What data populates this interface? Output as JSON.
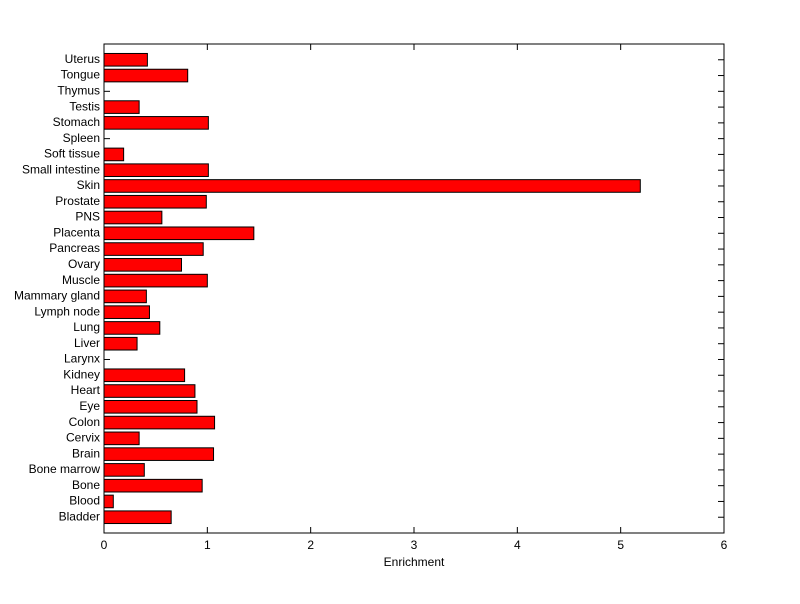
{
  "chart_data": {
    "type": "barh",
    "x_label": "Enrichment",
    "categories": [
      "Bladder",
      "Blood",
      "Bone",
      "Bone marrow",
      "Brain",
      "Cervix",
      "Colon",
      "Eye",
      "Heart",
      "Kidney",
      "Larynx",
      "Liver",
      "Lung",
      "Lymph node",
      "Mammary gland",
      "Muscle",
      "Ovary",
      "Pancreas",
      "Placenta",
      "PNS",
      "Prostate",
      "Skin",
      "Small intestine",
      "Soft tissue",
      "Spleen",
      "Stomach",
      "Testis",
      "Thymus",
      "Tongue",
      "Uterus"
    ],
    "values": [
      0.65,
      0.09,
      0.95,
      0.39,
      1.06,
      0.34,
      1.07,
      0.9,
      0.88,
      0.78,
      0,
      0.32,
      0.54,
      0.44,
      0.41,
      1.0,
      0.75,
      0.96,
      1.45,
      0.56,
      0.99,
      5.19,
      1.01,
      0.19,
      0,
      1.01,
      0.34,
      0,
      0.81,
      0.42
    ],
    "color": "#ff0000",
    "xlim": [
      0,
      6
    ],
    "xticks": [
      0,
      1,
      2,
      3,
      4,
      5,
      6
    ]
  }
}
